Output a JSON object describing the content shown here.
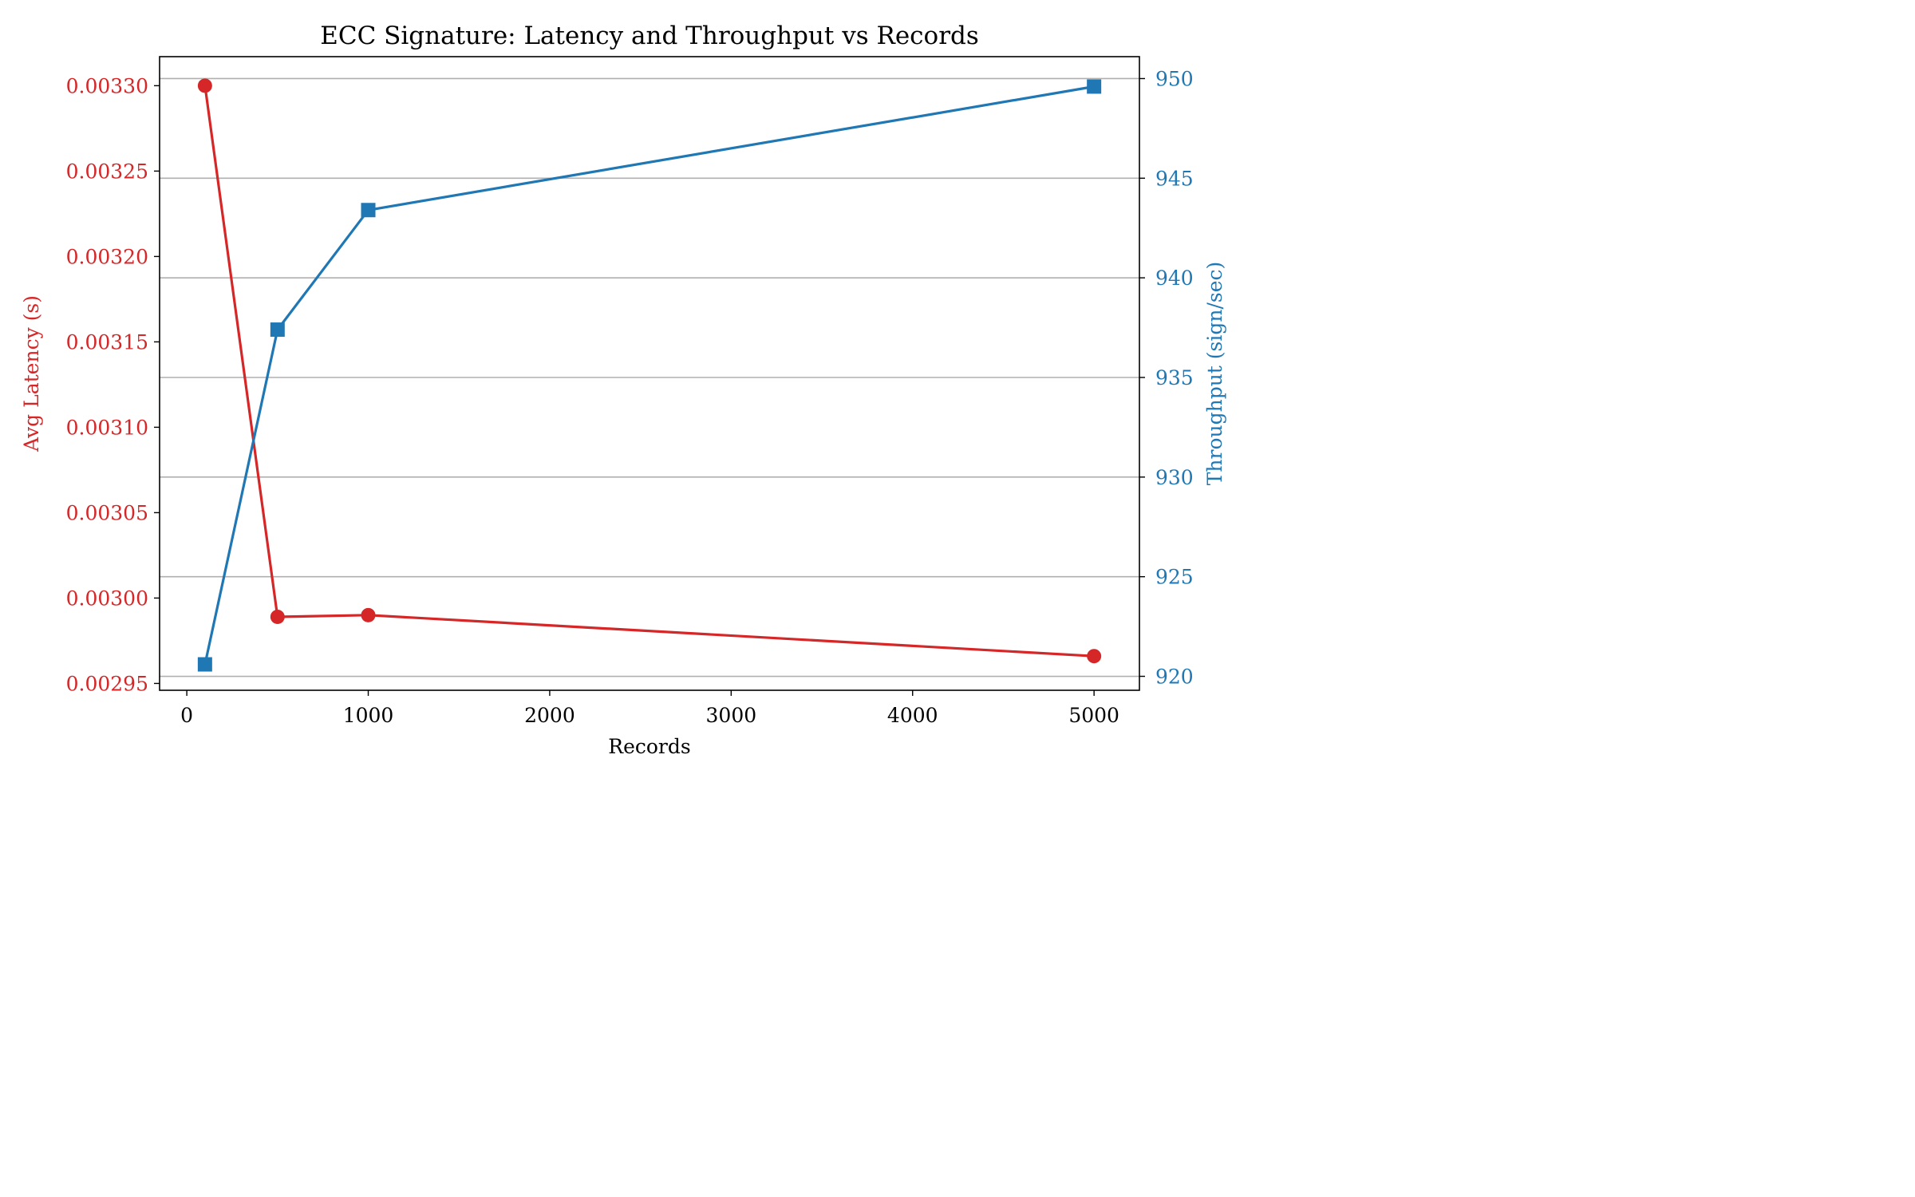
{
  "chart_data": {
    "type": "line",
    "title": "ECC Signature: Latency and Throughput vs Records",
    "xlabel": "Records",
    "x": [
      100,
      500,
      1000,
      5000
    ],
    "xlim": [
      -150,
      5250
    ],
    "x_ticks": [
      0,
      1000,
      2000,
      3000,
      4000,
      5000
    ],
    "y_left": {
      "label": "Avg Latency (s)",
      "color": "#d62728",
      "lim": [
        0.002946,
        0.003317
      ],
      "ticks": [
        "0.00295",
        "0.00300",
        "0.00305",
        "0.00310",
        "0.00315",
        "0.00320",
        "0.00325",
        "0.00330"
      ]
    },
    "y_right": {
      "label": "Throughput (sign/sec)",
      "color": "#1f77b4",
      "lim": [
        919.3,
        951.1
      ],
      "ticks": [
        920,
        925,
        930,
        935,
        940,
        945,
        950
      ]
    },
    "series": [
      {
        "axis": "left",
        "color": "#d62728",
        "marker": "circle",
        "values": [
          0.0033,
          0.002989,
          0.00299,
          0.002966
        ]
      },
      {
        "axis": "right",
        "color": "#1f77b4",
        "marker": "square",
        "values": [
          920.6,
          937.4,
          943.4,
          949.6
        ]
      }
    ],
    "grid": "horizontal (right axis)"
  }
}
